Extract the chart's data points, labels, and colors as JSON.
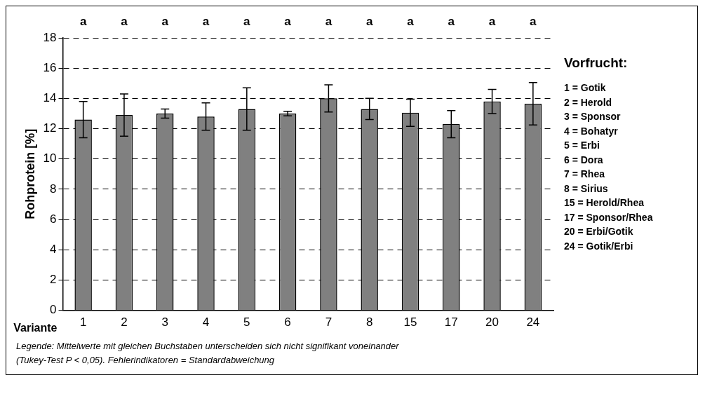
{
  "chart_data": {
    "type": "bar",
    "ylabel": "Rohprotein [%]",
    "xlabel": "Variante",
    "legend_title": "Vorfrucht:",
    "categories": [
      "1",
      "2",
      "3",
      "4",
      "5",
      "6",
      "7",
      "8",
      "15",
      "17",
      "20",
      "24"
    ],
    "values": [
      12.6,
      12.9,
      13.0,
      12.8,
      13.3,
      13.0,
      14.0,
      13.3,
      13.05,
      12.3,
      13.8,
      13.65
    ],
    "errors": [
      1.2,
      1.4,
      0.3,
      0.9,
      1.4,
      0.15,
      0.9,
      0.7,
      0.9,
      0.9,
      0.8,
      1.4
    ],
    "color": "#808080",
    "ylim": [
      0,
      18
    ],
    "yticks": [
      0,
      2,
      4,
      6,
      8,
      10,
      12,
      14,
      16,
      18
    ],
    "grid": "y",
    "legend": false,
    "annotations": [
      "a",
      "a",
      "a",
      "a",
      "a",
      "a",
      "a",
      "a",
      "a",
      "a",
      "a",
      "a",
      "1 = Gotik",
      "2 = Herold",
      "3 = Sponsor",
      "4 = Bohatyr",
      "5 = Erbi",
      "6 = Dora",
      "7 = Rhea",
      "8 = Sirius",
      "15 = Herold/Rhea",
      "17 = Sponsor/Rhea",
      "20 = Erbi/Gotik",
      "24 = Gotik/Erbi",
      "Legende: Mittelwerte mit gleichen Buchstaben unterscheiden sich nicht signifikant voneinander",
      "(Tukey-Test P < 0,05). Fehlerindikatoren = Standardabweichung"
    ]
  }
}
